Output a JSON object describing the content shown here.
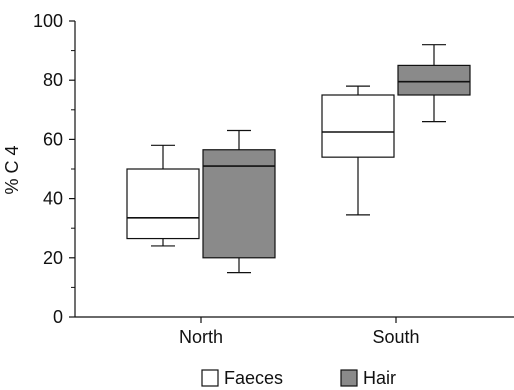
{
  "chart_data": {
    "type": "box",
    "ylabel": "% C 4",
    "ylim": [
      0,
      100
    ],
    "yticks": [
      0,
      20,
      40,
      60,
      80,
      100
    ],
    "minor_yticks": [
      10,
      30,
      50,
      70,
      90
    ],
    "categories": [
      "North",
      "South"
    ],
    "series": [
      {
        "name": "Faeces",
        "color": "#ffffff",
        "values": [
          {
            "category": "North",
            "min": 24,
            "q1": 26.5,
            "median": 33.5,
            "q3": 50,
            "max": 58
          },
          {
            "category": "South",
            "min": 34.5,
            "q1": 54,
            "median": 62.5,
            "q3": 75,
            "max": 78
          }
        ]
      },
      {
        "name": "Hair",
        "color": "#8a8a8a",
        "values": [
          {
            "category": "North",
            "min": 15,
            "q1": 20,
            "median": 51,
            "q3": 56.5,
            "max": 63
          },
          {
            "category": "South",
            "min": 66,
            "q1": 75,
            "median": 79.5,
            "q3": 85,
            "max": 92
          }
        ]
      }
    ],
    "grid": false,
    "legend_position": "bottom-center"
  }
}
